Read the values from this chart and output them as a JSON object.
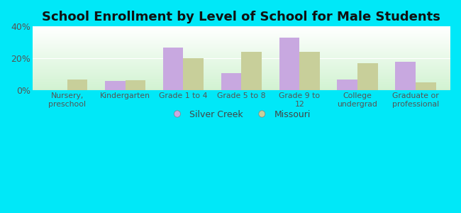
{
  "title": "School Enrollment by Level of School for Male Students",
  "categories": [
    "Nursery,\npreschool",
    "Kindergarten",
    "Grade 1 to 4",
    "Grade 5 to 8",
    "Grade 9 to\n12",
    "College\nundergrad",
    "Graduate or\nprofessional"
  ],
  "silver_creek": [
    0,
    6,
    27,
    11,
    33,
    7,
    18
  ],
  "missouri": [
    7,
    6.5,
    20,
    24,
    24,
    17,
    5
  ],
  "silver_creek_color": "#c8a8e0",
  "missouri_color": "#c8cf9a",
  "background_color": "#00e8f8",
  "ylim": [
    0,
    40
  ],
  "yticks": [
    0,
    20,
    40
  ],
  "ytick_labels": [
    "0%",
    "20%",
    "40%"
  ],
  "bar_width": 0.35,
  "title_fontsize": 13,
  "legend_labels": [
    "Silver Creek",
    "Missouri"
  ]
}
